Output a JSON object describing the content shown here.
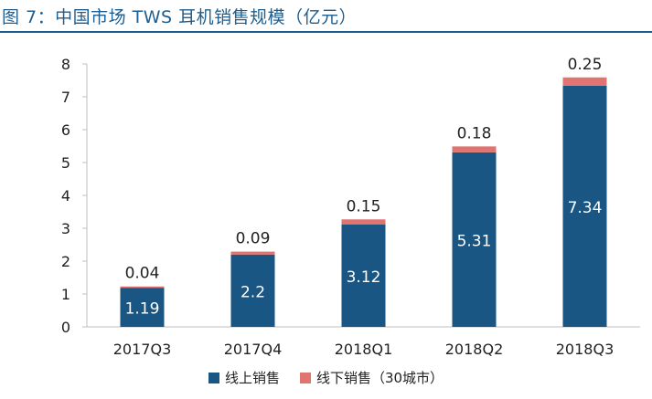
{
  "title": "图 7：中国市场 TWS 耳机销售规模（亿元）",
  "chart_data": {
    "type": "bar",
    "stacked": true,
    "title": "图 7：中国市场 TWS 耳机销售规模（亿元）",
    "categories": [
      "2017Q3",
      "2017Q4",
      "2018Q1",
      "2018Q2",
      "2018Q3"
    ],
    "series": [
      {
        "name": "线上销售",
        "values": [
          1.19,
          2.2,
          3.12,
          5.31,
          7.34
        ],
        "color": "#1a5683",
        "labels": [
          "1.19",
          "2.2",
          "3.12",
          "5.31",
          "7.34"
        ]
      },
      {
        "name": "线下销售（30城市）",
        "values": [
          0.04,
          0.09,
          0.15,
          0.18,
          0.25
        ],
        "color": "#e07470",
        "labels": [
          "0.04",
          "0.09",
          "0.15",
          "0.18",
          "0.25"
        ]
      }
    ],
    "ylim": [
      0,
      8
    ],
    "yticks": [
      "0",
      "1",
      "2",
      "3",
      "4",
      "5",
      "6",
      "7",
      "8"
    ],
    "grid": false,
    "legend_position": "bottom"
  }
}
